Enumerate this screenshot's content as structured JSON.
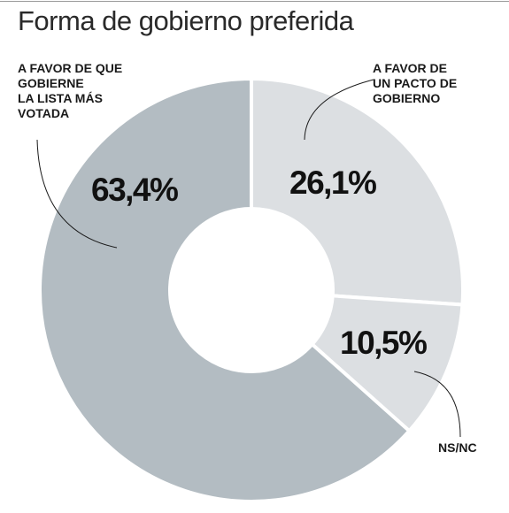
{
  "chart_data": {
    "type": "pie",
    "donut": true,
    "title": "Forma de gobierno preferida",
    "slices": [
      {
        "label_lines": [
          "A FAVOR DE",
          "UN PACTO DE",
          "GOBIERNO"
        ],
        "value": 26.1,
        "value_label": "26,1%",
        "color": "#dcdfe2"
      },
      {
        "label_lines": [
          "NS/NC"
        ],
        "value": 10.5,
        "value_label": "10,5%",
        "color": "#dcdfe2"
      },
      {
        "label_lines": [
          "A FAVOR DE QUE",
          "GOBIERNE",
          "LA LISTA MÁS",
          "VOTADA"
        ],
        "value": 63.4,
        "value_label": "63,4%",
        "color": "#b3bcc2"
      }
    ]
  }
}
